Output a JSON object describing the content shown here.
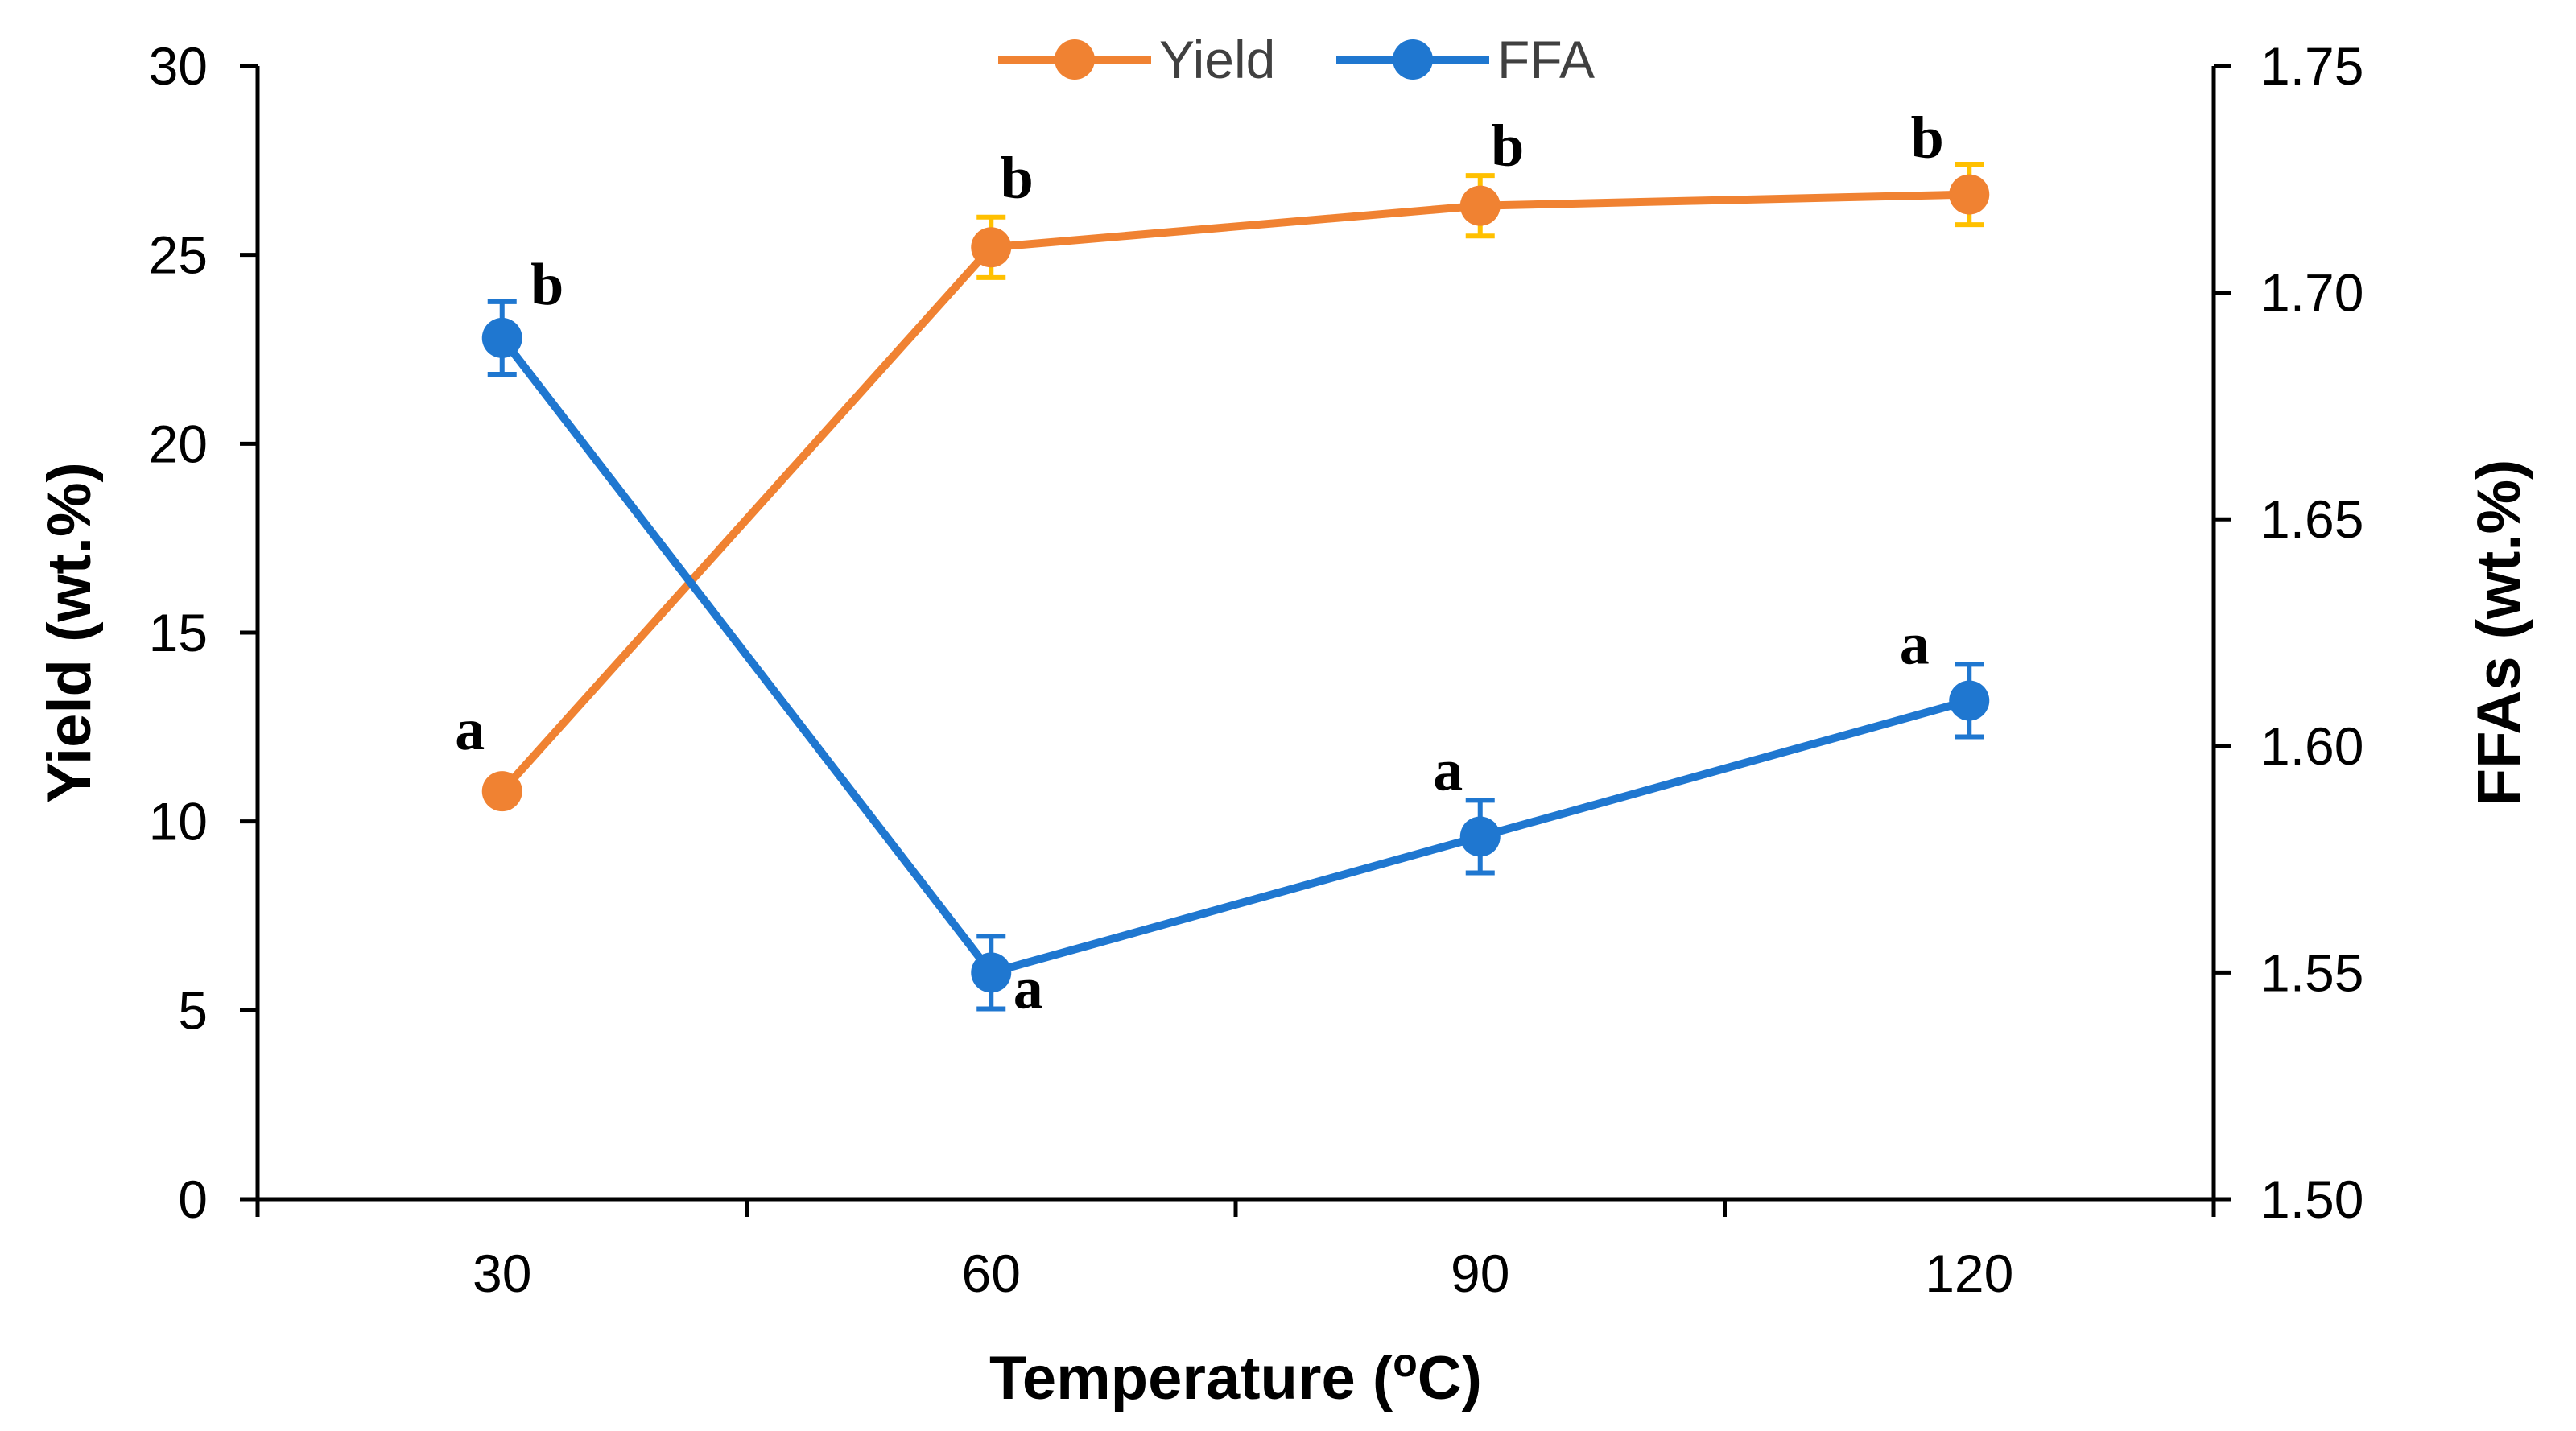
{
  "chart_data": {
    "type": "line",
    "title": "",
    "xlabel": "Temperature (oC)",
    "xlabel_main": "Temperature (",
    "xlabel_sup": "o",
    "xlabel_tail": "C)",
    "categories": [
      "30",
      "60",
      "90",
      "120"
    ],
    "y_left": {
      "label": "Yield (wt.%)",
      "range": [
        0,
        30
      ],
      "ticks": [
        0,
        5,
        10,
        15,
        20,
        25,
        30
      ],
      "tick_labels": [
        "0",
        "5",
        "10",
        "15",
        "20",
        "25",
        "30"
      ]
    },
    "y_right": {
      "label": "FFAs (wt.%)",
      "range": [
        1.5,
        1.75
      ],
      "ticks": [
        1.5,
        1.55,
        1.6,
        1.65,
        1.7,
        1.75
      ],
      "tick_labels": [
        "1.50",
        "1.55",
        "1.60",
        "1.65",
        "1.70",
        "1.75"
      ]
    },
    "legend_position": "top-center",
    "grid": false,
    "series": [
      {
        "name": "Yield",
        "axis": "left",
        "color": "#F08232",
        "error_color": "#FFC000",
        "values": [
          10.8,
          25.2,
          26.3,
          26.6
        ],
        "errors": [
          0.3,
          0.8,
          0.8,
          0.8
        ],
        "significance": [
          "a",
          "b",
          "b",
          "b"
        ]
      },
      {
        "name": "FFA",
        "axis": "right",
        "color": "#1F77D0",
        "error_color": "#1F77D0",
        "values": [
          1.69,
          1.55,
          1.58,
          1.61
        ],
        "errors": [
          0.008,
          0.008,
          0.008,
          0.008
        ],
        "significance": [
          "b",
          "a",
          "a",
          "a"
        ]
      }
    ]
  }
}
